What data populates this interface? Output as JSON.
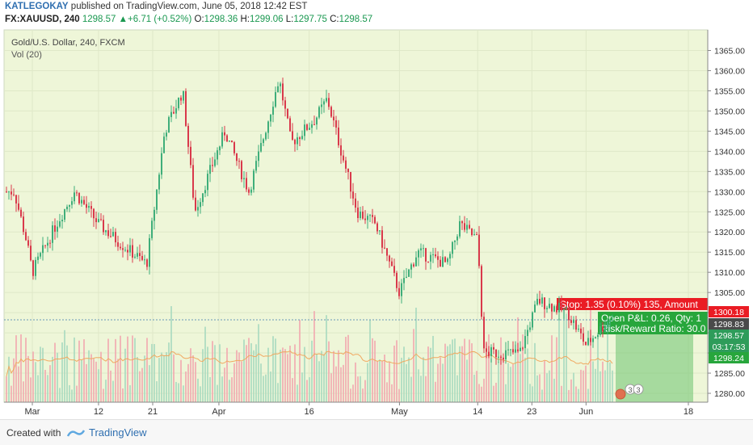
{
  "header": {
    "author": "KATLEGOKAY",
    "published_text": "published on TradingView.com, June 05, 2018 12:42 EST",
    "symbol": "FX:XAUUSD, 240",
    "last": "1298.57",
    "change_arrow": "▲",
    "change": "+6.71 (+0.52%)",
    "o_label": "O:",
    "o_value": "1298.36",
    "h_label": "H:",
    "h_value": "1299.06",
    "l_label": "L:",
    "l_value": "1297.75",
    "c_label": "C:",
    "c_value": "1298.57"
  },
  "chart_legend": {
    "title": "Gold/U.S. Dollar, 240, FXCM",
    "volume": "Vol (20)"
  },
  "price_tags": {
    "stop": "1300.18",
    "entry": "1298.83",
    "last": "1298.57",
    "countdown": "03:17:53",
    "target": "1298.24"
  },
  "position_tool": {
    "stop_label": "Stop: 1.35 (0.10%) 135, Amount",
    "pnl_label": "Open P&L: 0.26, Qty: 1",
    "ratio_label": "Risk/Reward Ratio: 30.0"
  },
  "events_badge": "3",
  "colors": {
    "plot_bg": "#eef6d8",
    "up": "#3fae7a",
    "down": "#d9394b",
    "vol_up": "#a6d9bf",
    "vol_down": "#f1a7af",
    "vol_ma": "#f0a860",
    "stop_red": "#ea1c24",
    "profit_green": "#27a63c"
  },
  "footer": {
    "created_with": "Created with",
    "brand": "TradingView"
  },
  "chart_data": {
    "type": "candlestick",
    "title": "Gold/U.S. Dollar, 240, FXCM",
    "y_ticks": [
      1280,
      1285,
      1290,
      1295,
      1300,
      1305,
      1310,
      1315,
      1320,
      1325,
      1330,
      1335,
      1340,
      1345,
      1350,
      1355,
      1360,
      1365
    ],
    "y_tick_labels": [
      "1280.00",
      "1285.00",
      "1290.00",
      "1295.00",
      "1300.00",
      "1305.00",
      "1310.00",
      "1315.00",
      "1320.00",
      "1325.00",
      "1330.00",
      "1335.00",
      "1340.00",
      "1345.00",
      "1350.00",
      "1355.00",
      "1360.00",
      "1365.00"
    ],
    "x_tick_labels": [
      "Mar",
      "12",
      "21",
      "Apr",
      "16",
      "May",
      "14",
      "23",
      "Jun",
      "18"
    ],
    "ylim": [
      1277,
      1369
    ],
    "approx_close_path": [
      {
        "date": "2018-02-26",
        "close": 1330
      },
      {
        "date": "2018-02-28",
        "close": 1318
      },
      {
        "date": "2018-03-01",
        "close": 1310
      },
      {
        "date": "2018-03-05",
        "close": 1322
      },
      {
        "date": "2018-03-08",
        "close": 1330
      },
      {
        "date": "2018-03-12",
        "close": 1322
      },
      {
        "date": "2018-03-15",
        "close": 1318
      },
      {
        "date": "2018-03-20",
        "close": 1312
      },
      {
        "date": "2018-03-23",
        "close": 1345
      },
      {
        "date": "2018-03-26",
        "close": 1355
      },
      {
        "date": "2018-03-28",
        "close": 1325
      },
      {
        "date": "2018-04-02",
        "close": 1345
      },
      {
        "date": "2018-04-06",
        "close": 1330
      },
      {
        "date": "2018-04-11",
        "close": 1358
      },
      {
        "date": "2018-04-13",
        "close": 1342
      },
      {
        "date": "2018-04-17",
        "close": 1348
      },
      {
        "date": "2018-04-19",
        "close": 1353
      },
      {
        "date": "2018-04-24",
        "close": 1325
      },
      {
        "date": "2018-04-27",
        "close": 1322
      },
      {
        "date": "2018-05-01",
        "close": 1305
      },
      {
        "date": "2018-05-04",
        "close": 1315
      },
      {
        "date": "2018-05-09",
        "close": 1312
      },
      {
        "date": "2018-05-11",
        "close": 1322
      },
      {
        "date": "2018-05-14",
        "close": 1318
      },
      {
        "date": "2018-05-15",
        "close": 1290
      },
      {
        "date": "2018-05-21",
        "close": 1290
      },
      {
        "date": "2018-05-24",
        "close": 1303
      },
      {
        "date": "2018-05-29",
        "close": 1300
      },
      {
        "date": "2018-06-01",
        "close": 1292
      },
      {
        "date": "2018-06-05",
        "close": 1298.57
      }
    ]
  }
}
